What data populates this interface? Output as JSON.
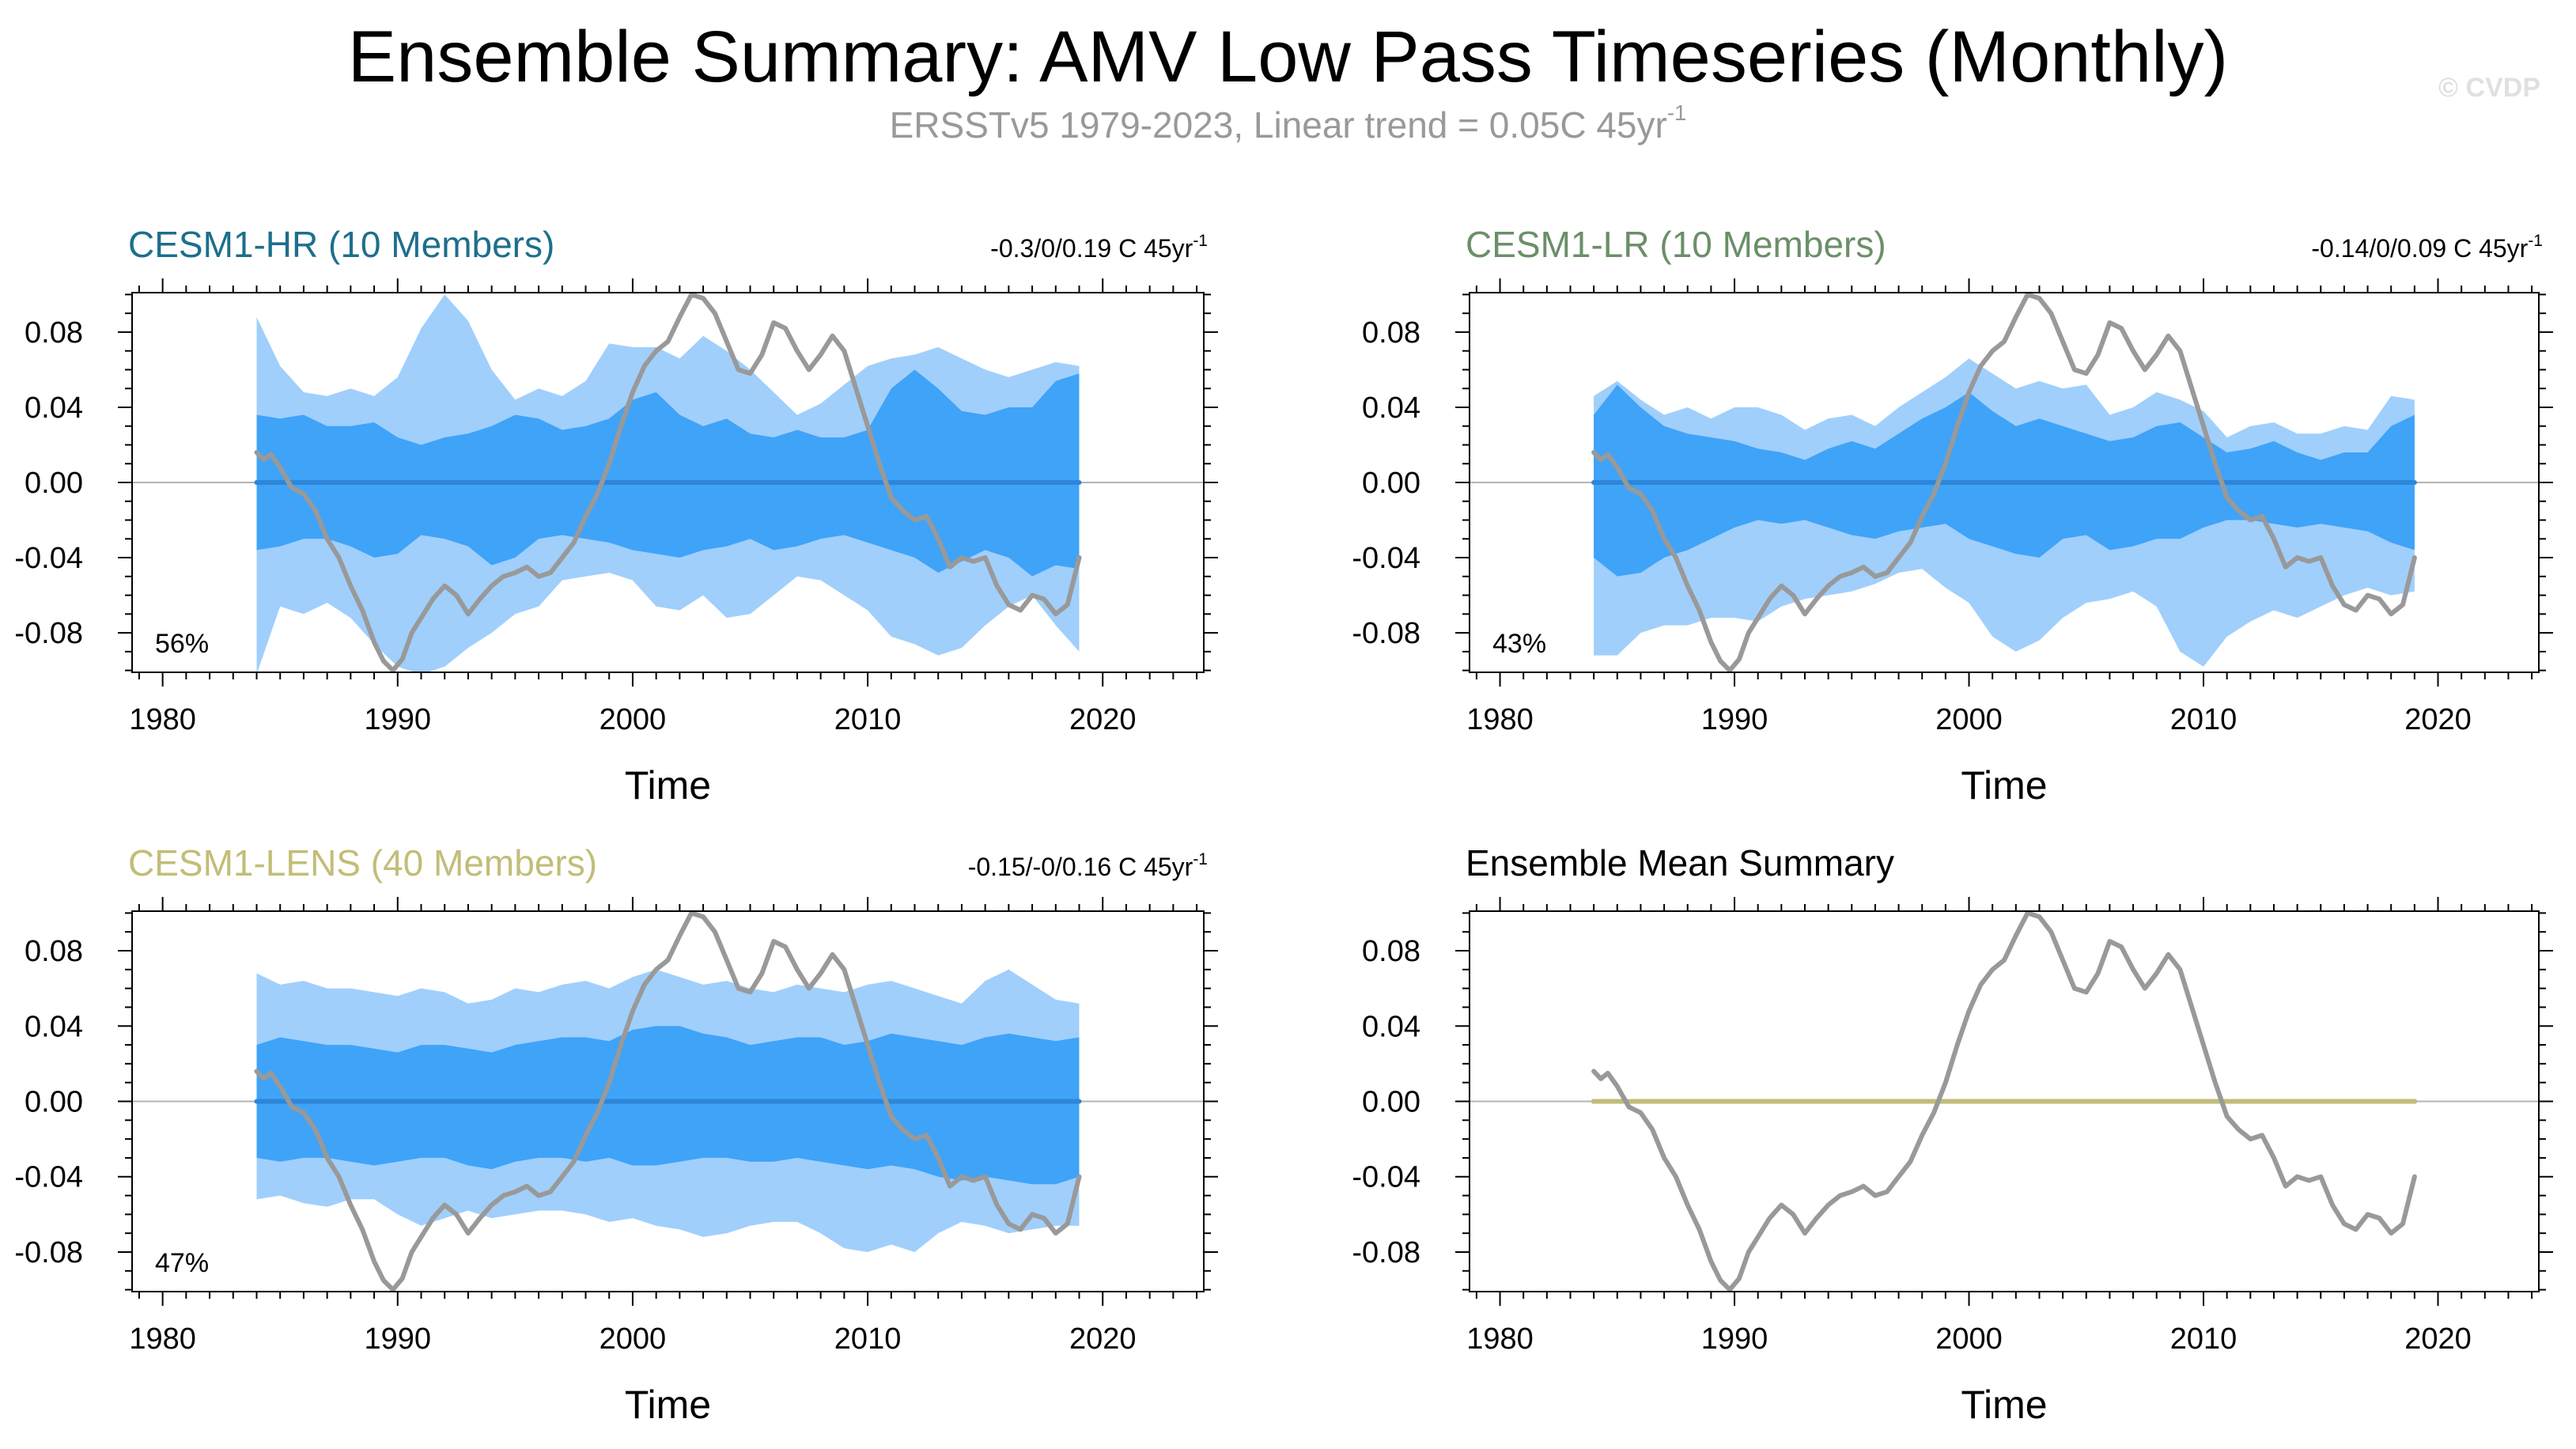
{
  "header": {
    "title": "Ensemble Summary: AMV Low Pass Timeseries (Monthly)",
    "subtitle": "ERSSTv5 1979-2023, Linear trend = 0.05C 45yr",
    "subtitle_sup": "-1",
    "watermark": "© CVDP"
  },
  "colors": {
    "outer_band": "#a0cffc",
    "inner_band": "#3fa3f8",
    "ens_mean_line": "#2e86d9",
    "obs_line": "#999999",
    "hr_title": "#1d6f8c",
    "lr_title": "#6b8f69",
    "lens_title": "#c2bd78",
    "summary_lens_line": "#c2bd78"
  },
  "chart_data": [
    {
      "id": "hr",
      "type": "area",
      "title": "CESM1-HR (10 Members)",
      "trend_text": "-0.3/0/0.19 C 45yr",
      "trend_sup": "-1",
      "percent_label": "56%",
      "xlabel": "Time",
      "ylabel": "",
      "xlim": [
        1978.7,
        2024.3
      ],
      "ylim": [
        -0.101,
        0.101
      ],
      "xticks": [
        1980,
        1990,
        2000,
        2010,
        2020
      ],
      "yticks": [
        -0.08,
        -0.04,
        0.0,
        0.04,
        0.08
      ],
      "ytick_labels": [
        "-0.08",
        "-0.04",
        "0.00",
        "0.04",
        "0.08"
      ],
      "x": [
        1984,
        1985,
        1986,
        1987,
        1988,
        1989,
        1990,
        1991,
        1992,
        1993,
        1994,
        1995,
        1996,
        1997,
        1998,
        1999,
        2000,
        2001,
        2002,
        2003,
        2004,
        2005,
        2006,
        2007,
        2008,
        2009,
        2010,
        2011,
        2012,
        2013,
        2014,
        2015,
        2016,
        2017,
        2018,
        2019
      ],
      "outer_upper": [
        0.088,
        0.062,
        0.048,
        0.046,
        0.05,
        0.046,
        0.056,
        0.082,
        0.1,
        0.086,
        0.06,
        0.044,
        0.05,
        0.046,
        0.054,
        0.074,
        0.072,
        0.072,
        0.066,
        0.078,
        0.07,
        0.06,
        0.048,
        0.036,
        0.042,
        0.052,
        0.062,
        0.066,
        0.068,
        0.072,
        0.066,
        0.06,
        0.056,
        0.06,
        0.064,
        0.062
      ],
      "inner_upper": [
        0.036,
        0.034,
        0.036,
        0.03,
        0.03,
        0.032,
        0.024,
        0.02,
        0.024,
        0.026,
        0.03,
        0.036,
        0.034,
        0.028,
        0.03,
        0.034,
        0.044,
        0.048,
        0.036,
        0.03,
        0.034,
        0.026,
        0.024,
        0.028,
        0.024,
        0.024,
        0.028,
        0.05,
        0.06,
        0.05,
        0.038,
        0.036,
        0.04,
        0.04,
        0.054,
        0.058
      ],
      "inner_lower": [
        -0.036,
        -0.034,
        -0.03,
        -0.03,
        -0.034,
        -0.04,
        -0.038,
        -0.028,
        -0.03,
        -0.034,
        -0.044,
        -0.04,
        -0.03,
        -0.028,
        -0.03,
        -0.032,
        -0.036,
        -0.038,
        -0.04,
        -0.036,
        -0.034,
        -0.03,
        -0.036,
        -0.034,
        -0.03,
        -0.028,
        -0.032,
        -0.036,
        -0.04,
        -0.048,
        -0.042,
        -0.036,
        -0.04,
        -0.05,
        -0.044,
        -0.046
      ],
      "outer_lower": [
        -0.102,
        -0.066,
        -0.07,
        -0.064,
        -0.072,
        -0.086,
        -0.098,
        -0.102,
        -0.098,
        -0.088,
        -0.08,
        -0.07,
        -0.066,
        -0.052,
        -0.05,
        -0.048,
        -0.052,
        -0.066,
        -0.068,
        -0.06,
        -0.072,
        -0.07,
        -0.06,
        -0.05,
        -0.052,
        -0.06,
        -0.068,
        -0.082,
        -0.086,
        -0.092,
        -0.088,
        -0.076,
        -0.066,
        -0.06,
        -0.076,
        -0.09
      ],
      "ens_mean": [
        0.0,
        0.0,
        0.0,
        0.0,
        0.0,
        0.0,
        0.0,
        0.0,
        0.0,
        0.0,
        0.0,
        0.0,
        0.0,
        0.0,
        0.0,
        0.0,
        0.0,
        0.0,
        0.0,
        0.0,
        0.0,
        0.0,
        0.0,
        0.0,
        0.0,
        0.0,
        0.0,
        0.0,
        0.0,
        0.0,
        0.0,
        0.0,
        0.0,
        0.0,
        0.0,
        0.0
      ]
    },
    {
      "id": "lr",
      "type": "area",
      "title": "CESM1-LR (10 Members)",
      "trend_text": "-0.14/0/0.09 C 45yr",
      "trend_sup": "-1",
      "percent_label": "43%",
      "xlabel": "Time",
      "ylabel": "",
      "xlim": [
        1978.7,
        2024.3
      ],
      "ylim": [
        -0.101,
        0.101
      ],
      "xticks": [
        1980,
        1990,
        2000,
        2010,
        2020
      ],
      "yticks": [
        -0.08,
        -0.04,
        0.0,
        0.04,
        0.08
      ],
      "ytick_labels": [
        "-0.08",
        "-0.04",
        "0.00",
        "0.04",
        "0.08"
      ],
      "x": [
        1984,
        1985,
        1986,
        1987,
        1988,
        1989,
        1990,
        1991,
        1992,
        1993,
        1994,
        1995,
        1996,
        1997,
        1998,
        1999,
        2000,
        2001,
        2002,
        2003,
        2004,
        2005,
        2006,
        2007,
        2008,
        2009,
        2010,
        2011,
        2012,
        2013,
        2014,
        2015,
        2016,
        2017,
        2018,
        2019
      ],
      "outer_upper": [
        0.046,
        0.054,
        0.044,
        0.036,
        0.04,
        0.034,
        0.04,
        0.04,
        0.036,
        0.028,
        0.034,
        0.036,
        0.03,
        0.04,
        0.048,
        0.056,
        0.066,
        0.058,
        0.05,
        0.054,
        0.05,
        0.052,
        0.036,
        0.04,
        0.048,
        0.044,
        0.038,
        0.024,
        0.03,
        0.032,
        0.026,
        0.026,
        0.03,
        0.028,
        0.046,
        0.044
      ],
      "inner_upper": [
        0.036,
        0.052,
        0.04,
        0.03,
        0.026,
        0.024,
        0.022,
        0.018,
        0.016,
        0.012,
        0.018,
        0.022,
        0.018,
        0.026,
        0.034,
        0.04,
        0.048,
        0.038,
        0.03,
        0.034,
        0.03,
        0.026,
        0.022,
        0.024,
        0.03,
        0.032,
        0.024,
        0.016,
        0.018,
        0.022,
        0.016,
        0.012,
        0.016,
        0.016,
        0.03,
        0.036
      ],
      "inner_lower": [
        -0.04,
        -0.05,
        -0.048,
        -0.04,
        -0.036,
        -0.03,
        -0.024,
        -0.02,
        -0.022,
        -0.02,
        -0.024,
        -0.028,
        -0.03,
        -0.026,
        -0.024,
        -0.022,
        -0.03,
        -0.034,
        -0.038,
        -0.04,
        -0.03,
        -0.028,
        -0.036,
        -0.034,
        -0.03,
        -0.03,
        -0.024,
        -0.02,
        -0.02,
        -0.022,
        -0.024,
        -0.022,
        -0.024,
        -0.026,
        -0.032,
        -0.036
      ],
      "outer_lower": [
        -0.092,
        -0.092,
        -0.08,
        -0.076,
        -0.076,
        -0.072,
        -0.072,
        -0.074,
        -0.066,
        -0.062,
        -0.06,
        -0.058,
        -0.054,
        -0.048,
        -0.046,
        -0.056,
        -0.064,
        -0.082,
        -0.09,
        -0.084,
        -0.072,
        -0.064,
        -0.062,
        -0.058,
        -0.066,
        -0.09,
        -0.098,
        -0.082,
        -0.074,
        -0.068,
        -0.072,
        -0.066,
        -0.06,
        -0.056,
        -0.06,
        -0.058
      ],
      "ens_mean": [
        0.0,
        0.0,
        0.0,
        0.0,
        0.0,
        0.0,
        0.0,
        0.0,
        0.0,
        0.0,
        0.0,
        0.0,
        0.0,
        0.0,
        0.0,
        0.0,
        0.0,
        0.0,
        0.0,
        0.0,
        0.0,
        0.0,
        0.0,
        0.0,
        0.0,
        0.0,
        0.0,
        0.0,
        0.0,
        0.0,
        0.0,
        0.0,
        0.0,
        0.0,
        0.0,
        0.0
      ]
    },
    {
      "id": "lens",
      "type": "area",
      "title": "CESM1-LENS (40 Members)",
      "trend_text": "-0.15/-0/0.16 C 45yr",
      "trend_sup": "-1",
      "percent_label": "47%",
      "xlabel": "Time",
      "ylabel": "",
      "xlim": [
        1978.7,
        2024.3
      ],
      "ylim": [
        -0.101,
        0.101
      ],
      "xticks": [
        1980,
        1990,
        2000,
        2010,
        2020
      ],
      "yticks": [
        -0.08,
        -0.04,
        0.0,
        0.04,
        0.08
      ],
      "ytick_labels": [
        "-0.08",
        "-0.04",
        "0.00",
        "0.04",
        "0.08"
      ],
      "x": [
        1984,
        1985,
        1986,
        1987,
        1988,
        1989,
        1990,
        1991,
        1992,
        1993,
        1994,
        1995,
        1996,
        1997,
        1998,
        1999,
        2000,
        2001,
        2002,
        2003,
        2004,
        2005,
        2006,
        2007,
        2008,
        2009,
        2010,
        2011,
        2012,
        2013,
        2014,
        2015,
        2016,
        2017,
        2018,
        2019
      ],
      "outer_upper": [
        0.068,
        0.062,
        0.064,
        0.06,
        0.06,
        0.058,
        0.056,
        0.06,
        0.058,
        0.052,
        0.054,
        0.06,
        0.058,
        0.062,
        0.064,
        0.06,
        0.066,
        0.07,
        0.066,
        0.062,
        0.064,
        0.06,
        0.058,
        0.062,
        0.06,
        0.058,
        0.062,
        0.064,
        0.06,
        0.056,
        0.052,
        0.064,
        0.07,
        0.062,
        0.054,
        0.052
      ],
      "inner_upper": [
        0.03,
        0.034,
        0.032,
        0.03,
        0.03,
        0.028,
        0.026,
        0.03,
        0.03,
        0.028,
        0.026,
        0.03,
        0.032,
        0.034,
        0.034,
        0.032,
        0.038,
        0.04,
        0.04,
        0.036,
        0.034,
        0.03,
        0.032,
        0.034,
        0.034,
        0.03,
        0.032,
        0.036,
        0.034,
        0.032,
        0.03,
        0.034,
        0.036,
        0.034,
        0.032,
        0.034
      ],
      "inner_lower": [
        -0.03,
        -0.032,
        -0.03,
        -0.03,
        -0.032,
        -0.034,
        -0.032,
        -0.03,
        -0.03,
        -0.034,
        -0.036,
        -0.032,
        -0.03,
        -0.03,
        -0.032,
        -0.03,
        -0.034,
        -0.034,
        -0.032,
        -0.03,
        -0.03,
        -0.032,
        -0.032,
        -0.03,
        -0.032,
        -0.034,
        -0.036,
        -0.034,
        -0.036,
        -0.04,
        -0.042,
        -0.04,
        -0.042,
        -0.044,
        -0.044,
        -0.04
      ],
      "outer_lower": [
        -0.052,
        -0.05,
        -0.054,
        -0.056,
        -0.052,
        -0.052,
        -0.06,
        -0.066,
        -0.062,
        -0.058,
        -0.062,
        -0.06,
        -0.058,
        -0.058,
        -0.06,
        -0.064,
        -0.062,
        -0.066,
        -0.068,
        -0.072,
        -0.07,
        -0.066,
        -0.064,
        -0.064,
        -0.07,
        -0.078,
        -0.08,
        -0.076,
        -0.08,
        -0.07,
        -0.064,
        -0.066,
        -0.07,
        -0.068,
        -0.066,
        -0.066
      ],
      "ens_mean": [
        0.0,
        0.0,
        0.0,
        0.0,
        0.0,
        0.0,
        0.0,
        0.0,
        0.0,
        0.0,
        0.0,
        0.0,
        0.0,
        0.0,
        0.0,
        0.0,
        0.0,
        0.0,
        0.0,
        0.0,
        0.0,
        0.0,
        0.0,
        0.0,
        0.0,
        0.0,
        0.0,
        0.0,
        0.0,
        0.0,
        0.0,
        0.0,
        0.0,
        0.0,
        0.0,
        0.0
      ]
    },
    {
      "id": "summary",
      "type": "line",
      "title": "Ensemble Mean Summary",
      "xlabel": "Time",
      "ylabel": "",
      "xlim": [
        1978.7,
        2024.3
      ],
      "ylim": [
        -0.101,
        0.101
      ],
      "xticks": [
        1980,
        1990,
        2000,
        2010,
        2020
      ],
      "yticks": [
        -0.08,
        -0.04,
        0.0,
        0.04,
        0.08
      ],
      "ytick_labels": [
        "-0.08",
        "-0.04",
        "0.00",
        "0.04",
        "0.08"
      ],
      "series": [
        {
          "name": "CESM1-HR",
          "x": [
            1984,
            2019
          ],
          "values": [
            0.0,
            0.0
          ]
        },
        {
          "name": "CESM1-LR",
          "x": [
            1984,
            2019
          ],
          "values": [
            0.0,
            0.0
          ]
        },
        {
          "name": "CESM1-LENS",
          "x": [
            1984,
            2019
          ],
          "values": [
            0.0,
            0.0
          ]
        }
      ]
    }
  ],
  "observations": {
    "name": "ERSSTv5",
    "x": [
      1984.0,
      1984.3,
      1984.6,
      1985.0,
      1985.5,
      1986.0,
      1986.5,
      1987.0,
      1987.5,
      1988.0,
      1988.5,
      1989.0,
      1989.4,
      1989.8,
      1990.2,
      1990.6,
      1991.0,
      1991.5,
      1992.0,
      1992.5,
      1993.0,
      1993.5,
      1994.0,
      1994.5,
      1995.0,
      1995.5,
      1996.0,
      1996.5,
      1997.0,
      1997.5,
      1998.0,
      1998.5,
      1999.0,
      1999.5,
      2000.0,
      2000.5,
      2001.0,
      2001.5,
      2002.0,
      2002.5,
      2003.0,
      2003.5,
      2004.0,
      2004.5,
      2005.0,
      2005.5,
      2006.0,
      2006.5,
      2007.0,
      2007.5,
      2008.0,
      2008.5,
      2009.0,
      2009.5,
      2010.0,
      2010.5,
      2011.0,
      2011.5,
      2012.0,
      2012.5,
      2013.0,
      2013.5,
      2014.0,
      2014.5,
      2015.0,
      2015.5,
      2016.0,
      2016.5,
      2017.0,
      2017.5,
      2018.0,
      2018.5,
      2019.0
    ],
    "values": [
      0.016,
      0.012,
      0.015,
      0.008,
      -0.003,
      -0.006,
      -0.015,
      -0.03,
      -0.04,
      -0.055,
      -0.068,
      -0.085,
      -0.095,
      -0.1,
      -0.094,
      -0.08,
      -0.072,
      -0.062,
      -0.055,
      -0.06,
      -0.07,
      -0.062,
      -0.055,
      -0.05,
      -0.048,
      -0.045,
      -0.05,
      -0.048,
      -0.04,
      -0.032,
      -0.018,
      -0.006,
      0.01,
      0.03,
      0.048,
      0.062,
      0.07,
      0.075,
      0.088,
      0.1,
      0.098,
      0.09,
      0.075,
      0.06,
      0.058,
      0.068,
      0.085,
      0.082,
      0.07,
      0.06,
      0.068,
      0.078,
      0.07,
      0.05,
      0.03,
      0.01,
      -0.008,
      -0.015,
      -0.02,
      -0.018,
      -0.03,
      -0.045,
      -0.04,
      -0.042,
      -0.04,
      -0.055,
      -0.065,
      -0.068,
      -0.06,
      -0.062,
      -0.07,
      -0.065,
      -0.04
    ]
  }
}
